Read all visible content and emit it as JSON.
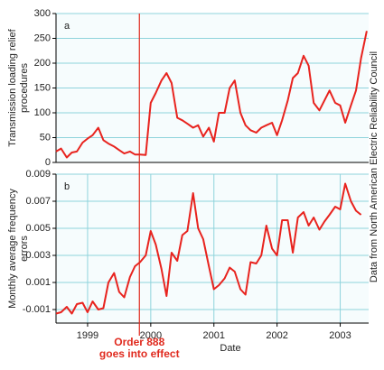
{
  "chart_data": [
    {
      "type": "line",
      "panel": "a",
      "y_label": [
        "Transmission loading relief",
        "procedures"
      ],
      "color": "#e8231e",
      "grid": true,
      "grid_color": "#8fd3dc",
      "xlim": [
        1998.5,
        2003.45
      ],
      "ylim": [
        0,
        300
      ],
      "yticks": [
        0,
        50,
        100,
        150,
        200,
        250,
        300
      ],
      "x": [
        1998.5,
        1998.58,
        1998.67,
        1998.75,
        1998.83,
        1998.92,
        1999.0,
        1999.08,
        1999.17,
        1999.25,
        1999.33,
        1999.42,
        1999.5,
        1999.58,
        1999.67,
        1999.75,
        1999.83,
        1999.92,
        2000.0,
        2000.08,
        2000.17,
        2000.25,
        2000.33,
        2000.42,
        2000.5,
        2000.58,
        2000.67,
        2000.75,
        2000.83,
        2000.92,
        2001.0,
        2001.08,
        2001.17,
        2001.25,
        2001.33,
        2001.42,
        2001.5,
        2001.58,
        2001.67,
        2001.75,
        2001.83,
        2001.92,
        2002.0,
        2002.08,
        2002.17,
        2002.25,
        2002.33,
        2002.42,
        2002.5,
        2002.58,
        2002.67,
        2002.75,
        2002.83,
        2002.92,
        2003.0,
        2003.08,
        2003.17,
        2003.25,
        2003.33,
        2003.42
      ],
      "values": [
        22,
        28,
        10,
        20,
        22,
        40,
        48,
        55,
        70,
        45,
        38,
        32,
        25,
        18,
        22,
        16,
        16,
        15,
        120,
        140,
        165,
        180,
        160,
        90,
        85,
        78,
        70,
        75,
        52,
        70,
        42,
        100,
        100,
        150,
        165,
        100,
        75,
        65,
        60,
        70,
        75,
        80,
        55,
        85,
        125,
        170,
        180,
        215,
        195,
        120,
        105,
        125,
        145,
        120,
        115,
        80,
        115,
        145,
        210,
        265
      ]
    },
    {
      "type": "line",
      "panel": "b",
      "y_label": [
        "Monthly average frequency",
        "errors"
      ],
      "x_label": "Date",
      "color": "#e8231e",
      "grid": true,
      "grid_color": "#8fd3dc",
      "xlim": [
        1998.5,
        2003.45
      ],
      "xticks": [
        1999,
        2000,
        2001,
        2002,
        2003
      ],
      "ylim": [
        -0.002,
        0.009
      ],
      "yticks": [
        -0.001,
        0.001,
        0.003,
        0.005,
        0.007,
        0.009
      ],
      "x": [
        1998.5,
        1998.58,
        1998.67,
        1998.75,
        1998.83,
        1998.92,
        1999.0,
        1999.08,
        1999.17,
        1999.25,
        1999.33,
        1999.42,
        1999.5,
        1999.58,
        1999.67,
        1999.75,
        1999.83,
        1999.92,
        2000.0,
        2000.08,
        2000.17,
        2000.25,
        2000.33,
        2000.42,
        2000.5,
        2000.58,
        2000.67,
        2000.75,
        2000.83,
        2000.92,
        2001.0,
        2001.08,
        2001.17,
        2001.25,
        2001.33,
        2001.42,
        2001.5,
        2001.58,
        2001.67,
        2001.75,
        2001.83,
        2001.92,
        2002.0,
        2002.08,
        2002.17,
        2002.25,
        2002.33,
        2002.42,
        2002.5,
        2002.58,
        2002.67,
        2002.75,
        2002.83,
        2002.92,
        2003.0,
        2003.08,
        2003.17,
        2003.25,
        2003.33
      ],
      "values": [
        -0.0013,
        -0.0012,
        -0.0008,
        -0.0013,
        -0.0006,
        -0.0005,
        -0.0012,
        -0.0004,
        -0.001,
        -0.0009,
        0.001,
        0.0017,
        0.0003,
        -0.0001,
        0.0014,
        0.0022,
        0.0025,
        0.003,
        0.0048,
        0.0038,
        0.002,
        0.0,
        0.0032,
        0.0026,
        0.0045,
        0.0048,
        0.0076,
        0.005,
        0.0042,
        0.0022,
        0.0005,
        0.0008,
        0.0013,
        0.0021,
        0.0018,
        0.0005,
        0.0001,
        0.0025,
        0.0024,
        0.003,
        0.0052,
        0.0035,
        0.003,
        0.0056,
        0.0056,
        0.0032,
        0.0058,
        0.0062,
        0.0052,
        0.0058,
        0.0049,
        0.0055,
        0.006,
        0.0066,
        0.0064,
        0.0083,
        0.007,
        0.0063,
        0.006
      ]
    }
  ],
  "annotation": {
    "x": 1999.82,
    "lines": [
      "Order 888",
      "goes into effect"
    ],
    "color": "#e02a1e"
  },
  "source": "Data from North American Electric Reliability Council"
}
